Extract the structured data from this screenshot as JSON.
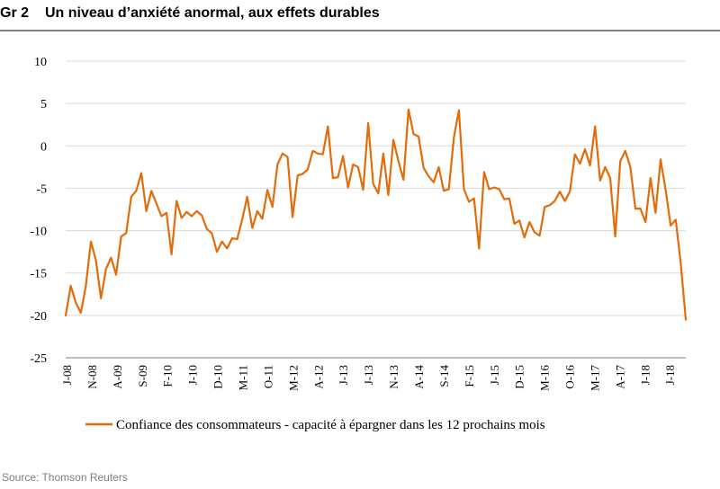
{
  "header": {
    "figure_number": "Gr 2",
    "title": "Un niveau d’anxiété anormal, aux effets durables"
  },
  "footer": {
    "source": "Source: Thomson Reuters"
  },
  "colors": {
    "series": "#E36C0A",
    "grid": "#d9d9d9",
    "axis": "#7f7f7f",
    "title_rule": "#7f7f7f"
  },
  "chart_data": {
    "type": "line",
    "title": "Un niveau d’anxiété anormal, aux effets durables",
    "xlabel": "",
    "ylabel": "",
    "ylim": [
      -25,
      10
    ],
    "yticks": [
      10,
      5,
      0,
      -5,
      -10,
      -15,
      -20,
      -25
    ],
    "grid": "horizontal",
    "legend_position": "bottom",
    "x_tick_labels": [
      "J-08",
      "N-08",
      "A-09",
      "S-09",
      "F-10",
      "J-10",
      "D-10",
      "M-11",
      "O-11",
      "M-12",
      "A-12",
      "J-13",
      "J-13",
      "N-13",
      "A-14",
      "S-14",
      "F-15",
      "J-15",
      "D-15",
      "M-16",
      "O-16",
      "M-17",
      "A-17",
      "J-18",
      "J-18"
    ],
    "series": [
      {
        "name": "Confiance des consommateurs - capacité à épargner dans les 12 prochains mois",
        "color": "#E36C0A",
        "values": [
          -20,
          -16.5,
          -18.5,
          -19.7,
          -16.5,
          -11.3,
          -13.5,
          -18,
          -14.5,
          -13.2,
          -15.2,
          -10.7,
          -10.3,
          -6,
          -5.3,
          -3.2,
          -7.7,
          -5.3,
          -6.8,
          -8.3,
          -7.9,
          -12.8,
          -6.5,
          -8.5,
          -7.8,
          -8.3,
          -7.7,
          -8.2,
          -9.8,
          -10.3,
          -12.5,
          -11.3,
          -12.1,
          -10.9,
          -11,
          -8.7,
          -6,
          -9.7,
          -7.7,
          -8.6,
          -5.2,
          -7.2,
          -2.2,
          -0.9,
          -1.3,
          -8.4,
          -3.5,
          -3.3,
          -2.8,
          -0.6,
          -0.9,
          -1,
          2.3,
          -3.8,
          -3.7,
          -1.2,
          -4.9,
          -2.2,
          -2.5,
          -5.2,
          2.7,
          -4.5,
          -5.6,
          -0.9,
          -5.8,
          0.7,
          -1.8,
          -4,
          4.3,
          1.4,
          1.1,
          -2.6,
          -3.6,
          -4.3,
          -2.5,
          -5.3,
          -5.1,
          1,
          4.2,
          -5.1,
          -6.6,
          -6.2,
          -12.1,
          -3.1,
          -5.1,
          -4.9,
          -5.1,
          -6.3,
          -6.2,
          -9.2,
          -8.8,
          -10.8,
          -9,
          -10.2,
          -10.6,
          -7.2,
          -7,
          -6.5,
          -5.4,
          -6.5,
          -5.4,
          -1,
          -2.1,
          -0.4,
          -2.3,
          2.3,
          -4.1,
          -2.5,
          -3.8,
          -10.7,
          -1.8,
          -0.6,
          -2.5,
          -7.4,
          -7.4,
          -9,
          -3.8,
          -7.9,
          -1.6,
          -5.2,
          -9.4,
          -8.7,
          -13.9,
          -20.5
        ]
      }
    ]
  }
}
